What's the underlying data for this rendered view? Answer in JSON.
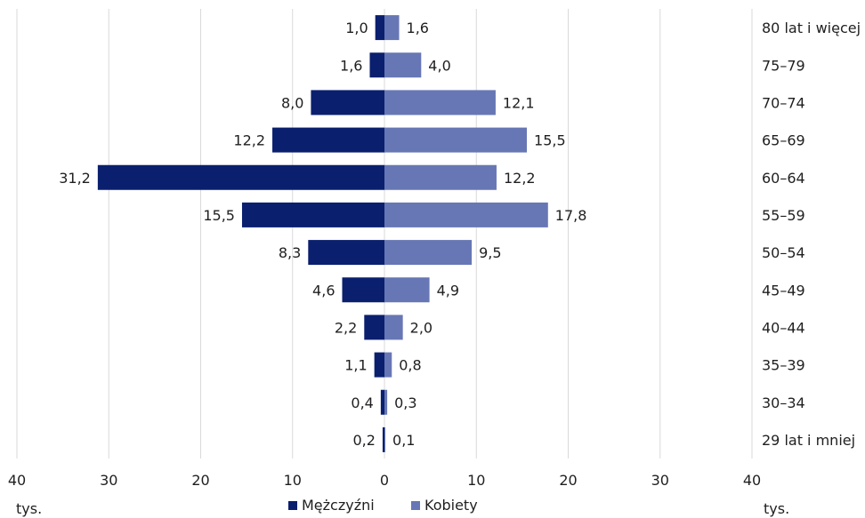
{
  "chart_data": {
    "type": "bar",
    "orientation": "horizontal",
    "layout": "population-pyramid",
    "categories": [
      "80 lat i więcej",
      "75–79",
      "70–74",
      "65–69",
      "60–64",
      "55–59",
      "50–54",
      "45–49",
      "40–44",
      "35–39",
      "30–34",
      "29 lat i mniej"
    ],
    "series": [
      {
        "name": "Mężczyźni",
        "color": "#0a1f6e",
        "values": [
          1.0,
          1.6,
          8.0,
          12.2,
          31.2,
          15.5,
          8.3,
          4.6,
          2.2,
          1.1,
          0.4,
          0.2
        ],
        "labels": [
          "1,0",
          "1,6",
          "8,0",
          "12,2",
          "31,2",
          "15,5",
          "8,3",
          "4,6",
          "2,2",
          "1,1",
          "0,4",
          "0,2"
        ]
      },
      {
        "name": "Kobiety",
        "color": "#6777b5",
        "values": [
          1.6,
          4.0,
          12.1,
          15.5,
          12.2,
          17.8,
          9.5,
          4.9,
          2.0,
          0.8,
          0.3,
          0.1
        ],
        "labels": [
          "1,6",
          "4,0",
          "12,1",
          "15,5",
          "12,2",
          "17,8",
          "9,5",
          "4,9",
          "2,0",
          "0,8",
          "0,3",
          "0,1"
        ]
      }
    ],
    "xlim": [
      -40,
      40
    ],
    "x_ticks": [
      -40,
      -30,
      -20,
      -10,
      0,
      10,
      20,
      30,
      40
    ],
    "x_tick_labels": [
      "40",
      "30",
      "20",
      "10",
      "0",
      "10",
      "20",
      "30",
      "40"
    ],
    "x_unit_left": "tys.",
    "x_unit_right": "tys.",
    "grid": true,
    "legend_position": "bottom-center"
  }
}
